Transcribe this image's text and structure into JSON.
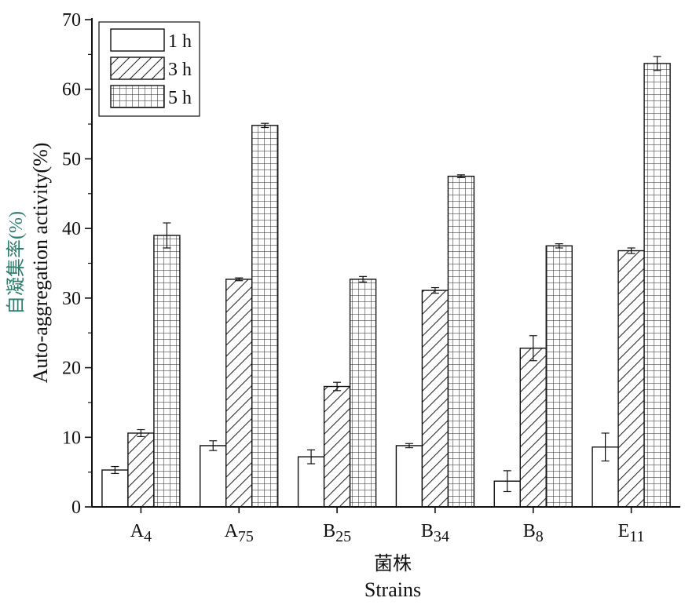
{
  "chart_data": {
    "type": "bar",
    "categories": [
      "A4",
      "A75",
      "B25",
      "B34",
      "B8",
      "E11"
    ],
    "category_labels": [
      {
        "main": "A",
        "sub": "4"
      },
      {
        "main": "A",
        "sub": "75"
      },
      {
        "main": "B",
        "sub": "25"
      },
      {
        "main": "B",
        "sub": "34"
      },
      {
        "main": "B",
        "sub": "8"
      },
      {
        "main": "E",
        "sub": "11"
      }
    ],
    "series": [
      {
        "name": "1 h",
        "pattern": "none",
        "values": [
          5.3,
          8.8,
          7.2,
          8.8,
          3.7,
          8.6
        ],
        "errors": [
          0.5,
          0.7,
          1.0,
          0.3,
          1.5,
          2.0
        ]
      },
      {
        "name": "3 h",
        "pattern": "hatch",
        "values": [
          10.6,
          32.7,
          17.3,
          31.1,
          22.8,
          36.8
        ],
        "errors": [
          0.5,
          0.2,
          0.6,
          0.4,
          1.8,
          0.4
        ]
      },
      {
        "name": "5 h",
        "pattern": "grid",
        "values": [
          39.0,
          54.8,
          32.7,
          47.5,
          37.5,
          63.7
        ],
        "errors": [
          1.8,
          0.3,
          0.4,
          0.2,
          0.3,
          1.0
        ]
      }
    ],
    "ylabel_cn": "自凝集率(%)",
    "ylabel": "Auto-aggregation activity(%)",
    "xlabel_cn": "菌株",
    "xlabel": "Strains",
    "ylim": [
      0,
      70
    ],
    "yticks": [
      0,
      10,
      20,
      30,
      40,
      50,
      60,
      70
    ],
    "legend_position": "top-left",
    "grid": false,
    "colors": {
      "bar_fill": "#ffffff",
      "stroke": "#111111",
      "ylabel_cn": "#2e7d6e"
    }
  }
}
